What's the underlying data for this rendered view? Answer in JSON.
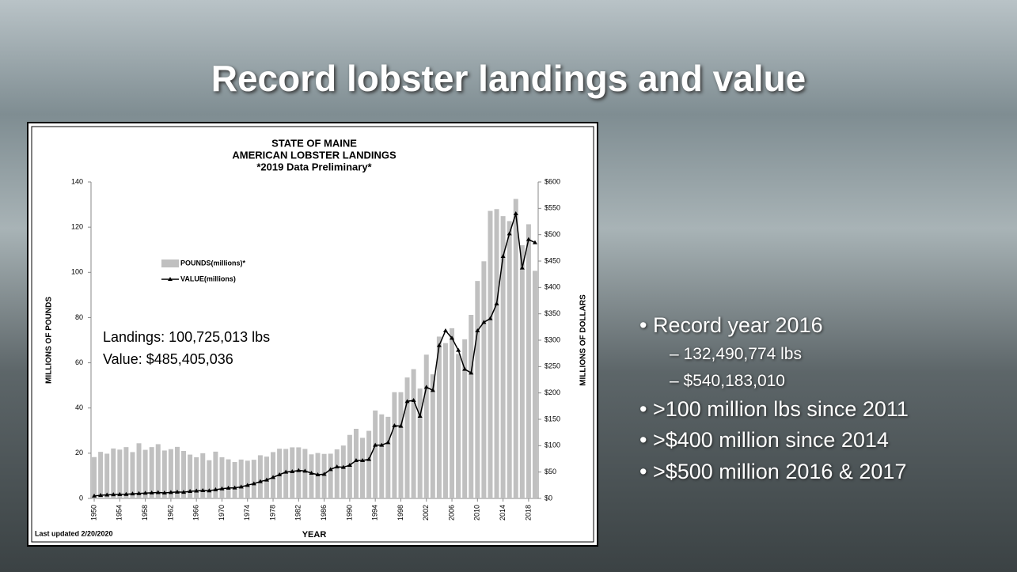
{
  "slide": {
    "title": "Record lobster landings and value",
    "bullets": [
      {
        "text": "Record year 2016",
        "sub": [
          "132,490,774 lbs",
          "$540,183,010"
        ]
      },
      {
        "text": ">100 million lbs since 2011",
        "sub": []
      },
      {
        "text": ">$400 million since 2014",
        "sub": []
      },
      {
        "text": ">$500 million 2016 & 2017",
        "sub": []
      }
    ]
  },
  "chart_data": {
    "type": "bar-line",
    "title": [
      "STATE OF MAINE",
      "AMERICAN LOBSTER LANDINGS",
      "*2019 Data Preliminary*"
    ],
    "x_label": "YEAR",
    "y_label": "MILLIONS OF POUNDS",
    "y2_label": "MILLIONS OF DOLLARS",
    "annotations": [
      "Landings: 100,725,013 lbs",
      "Value: $485,405,036",
      "Last updated 2/20/2020"
    ],
    "x": [
      1950,
      1951,
      1952,
      1953,
      1954,
      1955,
      1956,
      1957,
      1958,
      1959,
      1960,
      1961,
      1962,
      1963,
      1964,
      1965,
      1966,
      1967,
      1968,
      1969,
      1970,
      1971,
      1972,
      1973,
      1974,
      1975,
      1976,
      1977,
      1978,
      1979,
      1980,
      1981,
      1982,
      1983,
      1984,
      1985,
      1986,
      1987,
      1988,
      1989,
      1990,
      1991,
      1992,
      1993,
      1994,
      1995,
      1996,
      1997,
      1998,
      1999,
      2000,
      2001,
      2002,
      2003,
      2004,
      2005,
      2006,
      2007,
      2008,
      2009,
      2010,
      2011,
      2012,
      2013,
      2014,
      2015,
      2016,
      2017,
      2018,
      2019
    ],
    "xlim": [
      1949.5,
      2019.5
    ],
    "xticks": [
      1950,
      1954,
      1958,
      1962,
      1966,
      1970,
      1974,
      1978,
      1982,
      1986,
      1990,
      1994,
      1998,
      2002,
      2006,
      2010,
      2014,
      2018
    ],
    "ylim": [
      0,
      140
    ],
    "yticks": [
      0,
      20,
      40,
      60,
      80,
      100,
      120,
      140
    ],
    "y2lim": [
      0,
      600
    ],
    "y2ticks": [
      {
        "value": 0,
        "label": "$0"
      },
      {
        "value": 50,
        "label": "$50"
      },
      {
        "value": 100,
        "label": "$100"
      },
      {
        "value": 150,
        "label": "$150"
      },
      {
        "value": 200,
        "label": "$200"
      },
      {
        "value": 250,
        "label": "$250"
      },
      {
        "value": 300,
        "label": "$300"
      },
      {
        "value": 350,
        "label": "$350"
      },
      {
        "value": 400,
        "label": "$400"
      },
      {
        "value": 450,
        "label": "$450"
      },
      {
        "value": 500,
        "label": "$500"
      },
      {
        "value": 550,
        "label": "$550"
      },
      {
        "value": 600,
        "label": "$600"
      }
    ],
    "series": [
      {
        "name": "POUNDS(millions)*",
        "color": "#c0c0c0",
        "kind": "bar",
        "values": [
          18.3,
          20.6,
          19.8,
          22.1,
          21.6,
          22.7,
          20.5,
          24.4,
          21.5,
          22.7,
          24.0,
          21.2,
          21.8,
          22.8,
          21.0,
          19.4,
          18.2,
          20.0,
          16.9,
          20.7,
          18.2,
          17.3,
          16.1,
          17.2,
          16.7,
          17.1,
          19.1,
          18.5,
          20.5,
          22.0,
          21.9,
          22.6,
          22.6,
          21.9,
          19.5,
          20.1,
          19.7,
          19.8,
          21.7,
          23.4,
          28.1,
          30.8,
          26.8,
          29.9,
          38.9,
          37.2,
          36.1,
          47.0,
          47.0,
          53.5,
          57.2,
          48.6,
          63.6,
          54.9,
          71.6,
          68.7,
          75.3,
          63.9,
          70.4,
          81.2,
          96.2,
          104.9,
          127.2,
          128.0,
          124.9,
          122.7,
          132.5,
          112.0,
          121.3,
          100.7
        ]
      },
      {
        "name": "VALUE(millions)",
        "color": "#000000",
        "kind": "line",
        "axis": "y2",
        "values": [
          4.6,
          6,
          6.7,
          7.3,
          7.7,
          7.9,
          8.9,
          9.4,
          10.1,
          10.6,
          11.3,
          10.5,
          11.5,
          12.1,
          11.9,
          13.5,
          14.2,
          15,
          14.7,
          16.6,
          18.3,
          19.6,
          20,
          22,
          25,
          28,
          32,
          35,
          40,
          45,
          50,
          51,
          53,
          52,
          48,
          45,
          46,
          55,
          60,
          59,
          63,
          72,
          72,
          74,
          101,
          101,
          106,
          138,
          137,
          184,
          186,
          156,
          211,
          205,
          290,
          318,
          304,
          281,
          245,
          238,
          318,
          334,
          341,
          369,
          459,
          502,
          540,
          437,
          491,
          485
        ]
      }
    ]
  }
}
